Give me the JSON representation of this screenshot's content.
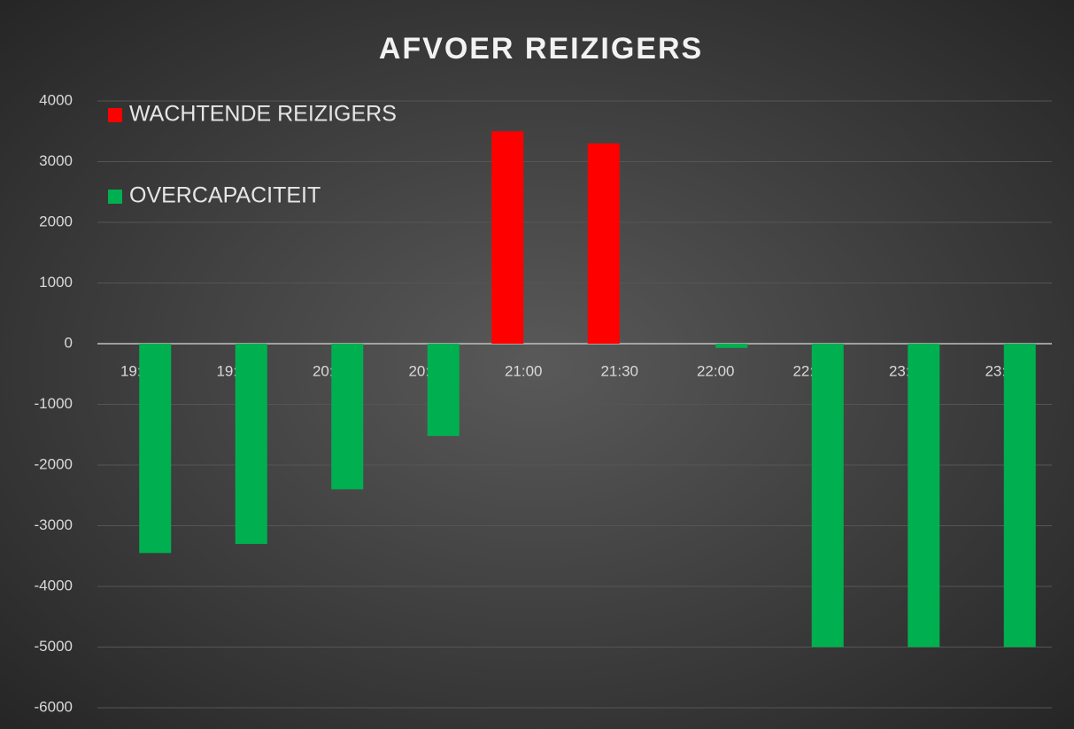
{
  "chart_data": {
    "type": "bar",
    "title": "AFVOER REIZIGERS",
    "categories": [
      "19:00",
      "19:30",
      "20:00",
      "20:30",
      "21:00",
      "21:30",
      "22:00",
      "22:30",
      "23:00",
      "23:30"
    ],
    "series": [
      {
        "name": "WACHTENDE REIZIGERS",
        "color": "#ff0000",
        "values": [
          null,
          null,
          null,
          null,
          3500,
          3300,
          null,
          null,
          null,
          null
        ]
      },
      {
        "name": "OVERCAPACITEIT",
        "color": "#00b050",
        "values": [
          -3450,
          -3300,
          -2400,
          -1520,
          null,
          null,
          -70,
          -5000,
          -5000,
          -5000
        ]
      }
    ],
    "ylim": [
      -6000,
      4000
    ],
    "yticks": [
      -6000,
      -5000,
      -4000,
      -3000,
      -2000,
      -1000,
      0,
      1000,
      2000,
      3000,
      4000
    ],
    "grid": true,
    "legend": "top-left"
  }
}
